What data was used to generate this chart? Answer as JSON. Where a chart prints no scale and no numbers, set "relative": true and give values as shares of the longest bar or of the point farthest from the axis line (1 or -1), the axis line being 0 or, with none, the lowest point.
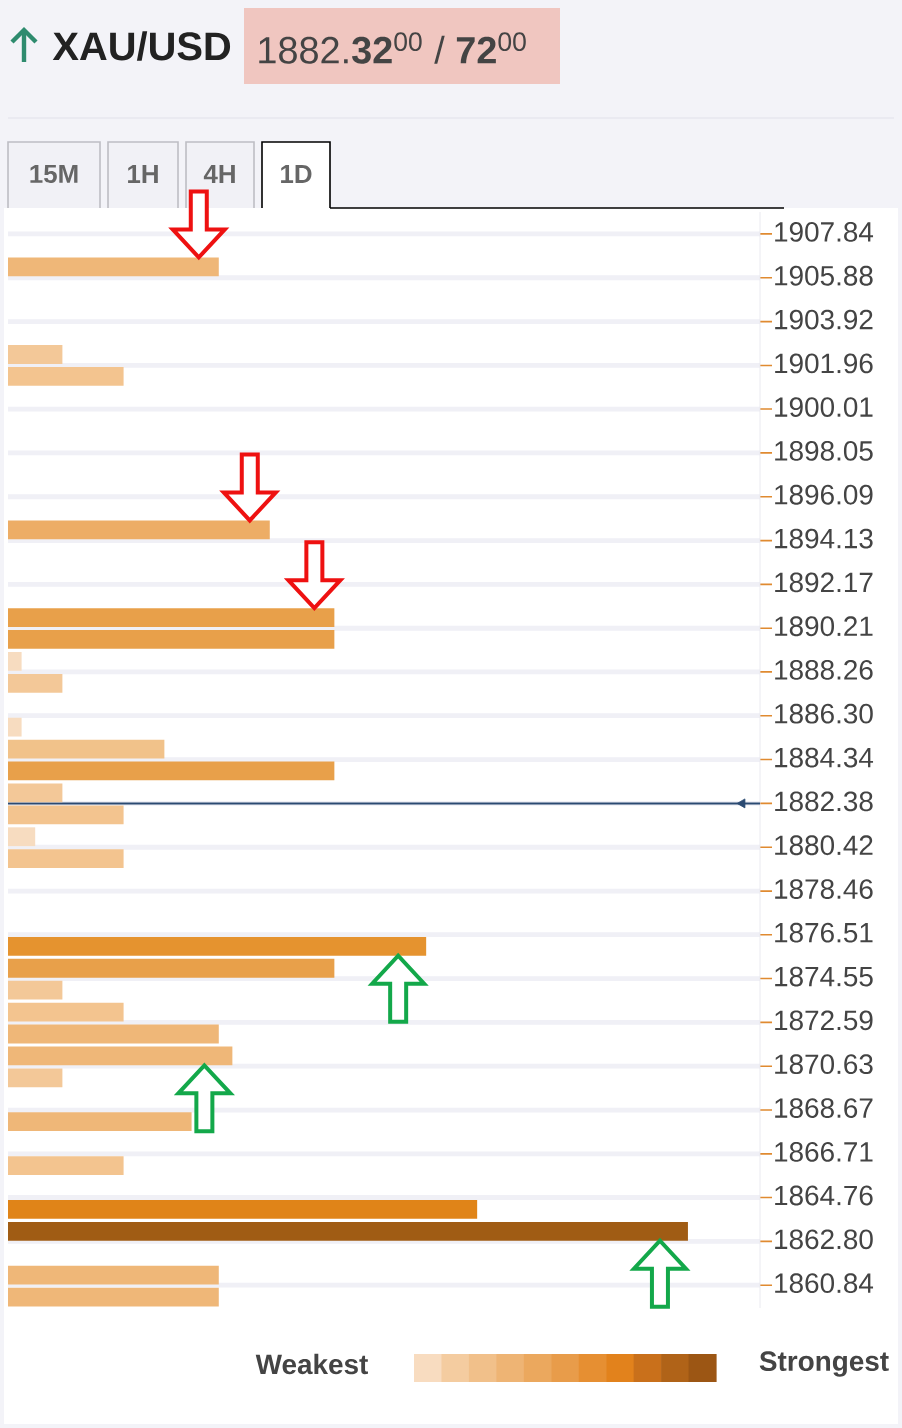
{
  "chart_data": {
    "type": "bar",
    "orientation": "horizontal",
    "relative": true,
    "title": "XAU/USD",
    "subtitle": "1882.**32**$^{00}$ / **72**$^{00}$",
    "x": [
      1906.37,
      1902.45,
      1901.47,
      1894.61,
      1890.69,
      1889.71,
      1888.73,
      1887.75,
      1885.79,
      1884.81,
      1883.83,
      1882.85,
      1881.87,
      1880.89,
      1879.91,
      1875.99,
      1875.01,
      1874.03,
      1873.05,
      1872.07,
      1871.09,
      1870.11,
      1868.15,
      1866.19,
      1864.23,
      1863.25,
      1861.29,
      1860.31
    ],
    "values": [
      0.31,
      0.08,
      0.17,
      0.385,
      0.48,
      0.48,
      0.02,
      0.08,
      0.02,
      0.23,
      0.48,
      0.08,
      0.17,
      0.04,
      0.17,
      0.615,
      0.48,
      0.08,
      0.17,
      0.31,
      0.33,
      0.08,
      0.27,
      0.17,
      0.69,
      1.0,
      0.31,
      0.31
    ],
    "colors": [
      "#efb778",
      "#f3c898",
      "#f3c48f",
      "#edad66",
      "#e8a04a",
      "#e8a04a",
      "#f7dcc0",
      "#f3c898",
      "#f7dcc0",
      "#f1c28a",
      "#e8a04a",
      "#f3c898",
      "#f3c48f",
      "#f7dcc0",
      "#f3c48f",
      "#e5932f",
      "#e8a04a",
      "#f3c898",
      "#f3c48f",
      "#efb778",
      "#efb778",
      "#f3c898",
      "#efb778",
      "#f3c48f",
      "#e08418",
      "#a05c14",
      "#efb778",
      "#efb778"
    ],
    "ylim": [
      1859.82,
      1908.82
    ],
    "yticks": [
      1907.84,
      1905.88,
      1903.92,
      1901.96,
      1900.01,
      1898.05,
      1896.09,
      1894.13,
      1892.17,
      1890.21,
      1888.26,
      {
        "value": 1886.3,
        "label": "1886.30"
      },
      1884.34,
      1882.38,
      1880.42,
      1878.46,
      1876.51,
      1874.55,
      1872.59,
      1870.63,
      1868.67,
      1866.71,
      1864.76,
      {
        "value": 1862.8,
        "label": "1862.80"
      },
      1860.84
    ],
    "grid": "y",
    "ref_lines": [
      {
        "axis": "y",
        "value": 1882.38,
        "color": "#2b4a72"
      }
    ],
    "annotations": [
      "15M",
      "1H",
      "4H",
      "1D",
      "Weakest",
      "Strongest"
    ]
  }
}
